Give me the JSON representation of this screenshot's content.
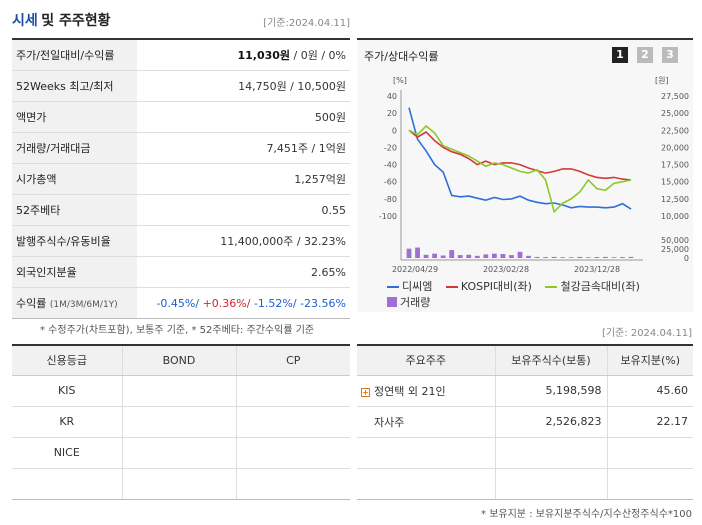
{
  "header": {
    "title_part1": "시세",
    "title_part2": "및 주주현황",
    "date": "[기준:2024.04.11]"
  },
  "price_table": [
    {
      "label": "주가/전일대비/수익률",
      "value_main": "11,030원",
      "value_rest": " / 0원 / 0%"
    },
    {
      "label": "52Weeks 최고/최저",
      "value": "14,750원 / 10,500원"
    },
    {
      "label": "액면가",
      "value": "500원"
    },
    {
      "label": "거래량/거래대금",
      "value": "7,451주 / 1억원"
    },
    {
      "label": "시가총액",
      "value": "1,257억원"
    },
    {
      "label": "52주베타",
      "value": "0.55"
    },
    {
      "label": "발행주식수/유동비율",
      "value": "11,400,000주 / 32.23%"
    },
    {
      "label": "외국인지분율",
      "value": "2.65%"
    }
  ],
  "returns": {
    "label": "수익률",
    "label_sub": "(1M/3M/6M/1Y)",
    "r1": "-0.45%/",
    "r2": " +0.36%/",
    "r3": " -1.52%/",
    "r4": " -23.56%"
  },
  "note1": "* 수정주가(차트포함), 보통주 기준, * 52주베타: 주간수익률 기준",
  "chart_section": {
    "title": "주가/상대수익률",
    "pages": [
      "1",
      "2",
      "3"
    ],
    "legend": {
      "s1": "디씨엠",
      "s2": "KOSPI대비(좌)",
      "s3": "철강금속대비(좌)",
      "s4": "거래량"
    }
  },
  "chart_data": {
    "type": "line",
    "left_unit": "[%]",
    "right_unit": "[원]",
    "left_ticks": [
      "40",
      "20",
      "0",
      "-20",
      "-40",
      "-60",
      "-80",
      "-100"
    ],
    "right_ticks": [
      "27,500",
      "25,000",
      "22,500",
      "20,000",
      "17,500",
      "15,000",
      "12,500",
      "10,000"
    ],
    "volume_ticks": [
      "50,000",
      "25,000",
      "0"
    ],
    "x_labels": [
      "2022/04/29",
      "2023/02/28",
      "2023/12/28"
    ],
    "ylim_left": [
      -100,
      40
    ],
    "ylim_right": [
      10000,
      27500
    ],
    "ylim_volume": [
      0,
      50000
    ],
    "series": [
      {
        "name": "디씨엠",
        "color": "#2f6fd6",
        "axis": "right",
        "values": [
          25800,
          21200,
          19500,
          17500,
          16400,
          13000,
          12800,
          12900,
          12600,
          12300,
          12700,
          12400,
          12500,
          12900,
          12300,
          12000,
          11800,
          11900,
          11600,
          11200,
          11400,
          11300,
          11300,
          11200,
          11300,
          11800,
          11000
        ]
      },
      {
        "name": "KOSPI대비(좌)",
        "color": "#d23a3a",
        "axis": "left",
        "values": [
          0,
          -8,
          -2,
          -12,
          -20,
          -25,
          -28,
          -33,
          -40,
          -36,
          -40,
          -38,
          -38,
          -40,
          -44,
          -47,
          -50,
          -48,
          -45,
          -45,
          -48,
          -52,
          -55,
          -56,
          -55,
          -57,
          -58
        ]
      },
      {
        "name": "철강금속대비(좌)",
        "color": "#8ac926",
        "axis": "left",
        "values": [
          0,
          -5,
          5,
          -3,
          -18,
          -22,
          -26,
          -30,
          -36,
          -42,
          -38,
          -40,
          -44,
          -48,
          -50,
          -46,
          -58,
          -95,
          -85,
          -80,
          -72,
          -58,
          -68,
          -70,
          -62,
          -60,
          -58
        ]
      }
    ],
    "volume": [
      26000,
      29000,
      9000,
      12000,
      7000,
      22000,
      8000,
      9000,
      6000,
      10000,
      12000,
      11000,
      8000,
      17000,
      6000,
      3000,
      2500,
      3000,
      2000,
      2000,
      3000,
      2000,
      2500,
      3000,
      2000,
      2500,
      3000
    ]
  },
  "date2": "[기준: 2024.04.11]",
  "credit": {
    "headers": [
      "신용등급",
      "BOND",
      "CP"
    ],
    "rows": [
      [
        "KIS",
        "",
        ""
      ],
      [
        "KR",
        "",
        ""
      ],
      [
        "NICE",
        "",
        ""
      ],
      [
        "",
        "",
        ""
      ]
    ]
  },
  "holders": {
    "headers": [
      "주요주주",
      "보유주식수(보통)",
      "보유지분(%)"
    ],
    "rows": [
      {
        "name": "정연택 외 21인",
        "shares": "5,198,598",
        "pct": "45.60"
      },
      {
        "name": "자사주",
        "shares": "2,526,823",
        "pct": "22.17"
      },
      {
        "name": "",
        "shares": "",
        "pct": ""
      },
      {
        "name": "",
        "shares": "",
        "pct": ""
      }
    ]
  },
  "note2": "* 보유지분 : 보유지분주식수/지수산정주식수*100"
}
